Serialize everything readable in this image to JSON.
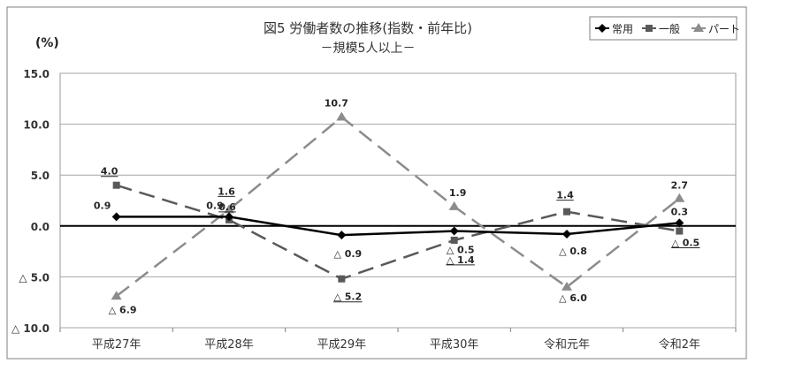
{
  "chart_data": {
    "type": "line",
    "title": "図5 労働者数の推移(指数・前年比)",
    "subtitle": "－規模5人以上－",
    "ylabel": "(%)",
    "ylim": [
      -10,
      15
    ],
    "yticks": [
      {
        "value": 15,
        "label": "15.0"
      },
      {
        "value": 10,
        "label": "10.0"
      },
      {
        "value": 5,
        "label": "5.0"
      },
      {
        "value": 0,
        "label": "0.0"
      },
      {
        "value": -5,
        "label": "△ 5.0"
      },
      {
        "value": -10,
        "label": "△ 10.0"
      }
    ],
    "categories": [
      "平成27年",
      "平成28年",
      "平成29年",
      "平成30年",
      "令和元年",
      "令和2年"
    ],
    "grid": true,
    "legend_position": "top-right",
    "series": [
      {
        "name": "常用",
        "color": "#000000",
        "marker": "diamond",
        "dash": "solid",
        "values": [
          0.9,
          0.9,
          -0.9,
          -0.5,
          -0.8,
          0.3
        ],
        "labels": [
          "0.9",
          "0.9",
          "△ 0.9",
          "△ 0.5",
          "△ 0.8",
          "0.3"
        ]
      },
      {
        "name": "一般",
        "color": "#595959",
        "marker": "square",
        "dash": "dashed",
        "values": [
          4.0,
          0.6,
          -5.2,
          -1.4,
          1.4,
          -0.5
        ],
        "labels": [
          "4.0",
          "0.6",
          "△ 5.2",
          "△ 1.4",
          "1.4",
          "△ 0.5"
        ]
      },
      {
        "name": "パート",
        "color": "#8c8c8c",
        "marker": "triangle",
        "dash": "dashed",
        "values": [
          -6.9,
          1.6,
          10.7,
          1.9,
          -6.0,
          2.7
        ],
        "labels": [
          "△ 6.9",
          "1.6",
          "10.7",
          "1.9",
          "△ 6.0",
          "2.7"
        ]
      }
    ]
  }
}
